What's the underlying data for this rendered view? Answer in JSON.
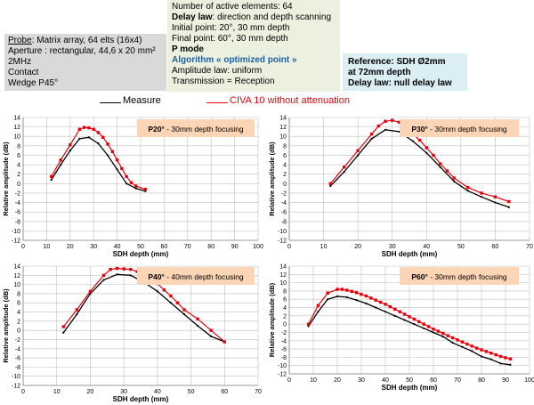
{
  "probe": {
    "lines": [
      "Probe",
      ": Matrix array, 64 elts (16x4)",
      "Aperture : rectangular, 44,6 x 20 mm²",
      "2MHz",
      "Contact",
      "Wedge P45°"
    ]
  },
  "params": {
    "line1": "Number of active elements: 64",
    "line2_label": "Delay law",
    "line2_rest": ": direction and depth scanning",
    "line3": "Initial point: 20°, 30 mm depth",
    "line4": "Final point: 60°, 30 mm depth",
    "line5": "P mode",
    "line6": "Algorithm « optimized point »",
    "line7": "Amplitude law: uniform",
    "line8": "Transmission = Reception"
  },
  "reference": {
    "line1": "Reference: SDH Ø2mm",
    "line2": "at 72mm  depth",
    "line3": "Delay law: null delay law"
  },
  "legend": {
    "measure": "Measure",
    "civa": "CIVA 10 without attenuation",
    "measure_color": "#000000",
    "civa_color": "#e8000b"
  },
  "chart_data": [
    {
      "type": "line",
      "title": "P20° - 30mm depth focusing",
      "xlabel": "SDH depth (mm)",
      "ylabel": "Relative amplitude (dB)",
      "xlim": [
        0,
        100
      ],
      "xticks": [
        0,
        10,
        20,
        30,
        40,
        50,
        60,
        70,
        80,
        90,
        100
      ],
      "ylim": [
        -12,
        14
      ],
      "yticks": [
        -12,
        -10,
        -8,
        -6,
        -4,
        -2,
        0,
        2,
        4,
        6,
        8,
        10,
        12,
        14
      ],
      "grid": true,
      "series": [
        {
          "name": "Measure",
          "x": [
            12,
            16,
            20,
            24,
            28,
            32,
            36,
            40,
            44,
            48,
            52
          ],
          "y": [
            0.8,
            4.0,
            7.0,
            9.5,
            9.8,
            8.5,
            6.0,
            3.0,
            0,
            -1,
            -1.6
          ]
        },
        {
          "name": "CIVA 10 without attenuation",
          "x": [
            12,
            16,
            20,
            24,
            26,
            28,
            30,
            32,
            34,
            36,
            38,
            40,
            42,
            44,
            46,
            48,
            52
          ],
          "y": [
            1.5,
            5.0,
            8.2,
            11.5,
            11.9,
            11.8,
            11.5,
            10.8,
            9.8,
            8.4,
            6.8,
            5.0,
            3.2,
            1.5,
            0.2,
            -0.5,
            -1.2
          ]
        }
      ]
    },
    {
      "type": "line",
      "title": "P30° - 30mm depth focusing",
      "xlabel": "SDH depth (mm)",
      "ylabel": "Relative amplitude (dB)",
      "xlim": [
        0,
        70
      ],
      "xticks": [
        0,
        10,
        20,
        30,
        40,
        50,
        60,
        70
      ],
      "ylim": [
        -12,
        14
      ],
      "yticks": [
        -12,
        -10,
        -8,
        -6,
        -4,
        -2,
        0,
        2,
        4,
        6,
        8,
        10,
        12,
        14
      ],
      "grid": true,
      "series": [
        {
          "name": "Measure",
          "x": [
            12,
            16,
            20,
            24,
            28,
            32,
            36,
            40,
            44,
            48,
            52,
            56,
            60,
            64
          ],
          "y": [
            -0.5,
            2.5,
            6.0,
            9.5,
            11.4,
            11.0,
            9.0,
            6.5,
            3.5,
            0.5,
            -1.5,
            -2.8,
            -4.0,
            -5.0
          ]
        },
        {
          "name": "CIVA 10 without attenuation",
          "x": [
            12,
            16,
            20,
            24,
            26,
            28,
            30,
            32,
            34,
            36,
            38,
            40,
            42,
            44,
            46,
            48,
            52,
            56,
            60,
            64
          ],
          "y": [
            0,
            3.5,
            7.0,
            10.5,
            12.2,
            13.2,
            13.4,
            13.0,
            12.0,
            10.5,
            9.2,
            7.6,
            6.0,
            4.2,
            2.7,
            1.2,
            -0.8,
            -2.0,
            -2.8,
            -3.8
          ]
        }
      ]
    },
    {
      "type": "line",
      "title": "P40° - 40mm depth focusing",
      "xlabel": "SDH depth (mm)",
      "ylabel": "Relative amplitude (dB)",
      "xlim": [
        0,
        70
      ],
      "xticks": [
        0,
        10,
        20,
        30,
        40,
        50,
        60,
        70
      ],
      "ylim": [
        -12,
        14
      ],
      "yticks": [
        -12,
        -10,
        -8,
        -6,
        -4,
        -2,
        0,
        2,
        4,
        6,
        8,
        10,
        12,
        14
      ],
      "grid": true,
      "series": [
        {
          "name": "Measure",
          "x": [
            12,
            16,
            20,
            24,
            28,
            32,
            36,
            40,
            44,
            48,
            52,
            56,
            60
          ],
          "y": [
            -0.5,
            3.5,
            8.0,
            11.0,
            12.2,
            12.0,
            10.5,
            8.5,
            6.0,
            3.5,
            1.0,
            -1.3,
            -2.5
          ]
        },
        {
          "name": "CIVA 10 without attenuation",
          "x": [
            12,
            16,
            20,
            24,
            26,
            28,
            30,
            32,
            34,
            36,
            38,
            40,
            42,
            44,
            46,
            48,
            52,
            56,
            60
          ],
          "y": [
            0.8,
            4.5,
            8.5,
            12.0,
            13.3,
            13.5,
            13.4,
            13.3,
            12.8,
            12.0,
            11.0,
            10.2,
            8.8,
            7.5,
            6.0,
            4.5,
            2.5,
            0,
            -2.5
          ]
        }
      ]
    },
    {
      "type": "line",
      "title": "P60° - 30mm depth focusing",
      "xlabel": "SDH depth (mm)",
      "ylabel": "Relative amplitude (dB)",
      "xlim": [
        0,
        100
      ],
      "xticks": [
        0,
        10,
        20,
        30,
        40,
        50,
        60,
        70,
        80,
        90,
        100
      ],
      "ylim": [
        -12,
        14
      ],
      "yticks": [
        -12,
        -10,
        -8,
        -6,
        -4,
        -2,
        0,
        2,
        4,
        6,
        8,
        10,
        12,
        14
      ],
      "grid": true,
      "series": [
        {
          "name": "Measure",
          "x": [
            8,
            12,
            16,
            20,
            24,
            28,
            32,
            36,
            40,
            44,
            48,
            52,
            56,
            60,
            64,
            68,
            72,
            76,
            80,
            84,
            88,
            92
          ],
          "y": [
            -0.5,
            3.0,
            6.0,
            6.7,
            6.5,
            5.8,
            5.0,
            4.0,
            3.0,
            2.0,
            1.0,
            0,
            -1.0,
            -2.0,
            -3.0,
            -4.5,
            -5.5,
            -6.5,
            -7.8,
            -8.5,
            -9.5,
            -9.8
          ]
        },
        {
          "name": "CIVA 10 without attenuation",
          "x": [
            8,
            12,
            16,
            20,
            22,
            24,
            26,
            28,
            30,
            32,
            34,
            36,
            38,
            40,
            42,
            44,
            46,
            48,
            50,
            52,
            54,
            56,
            58,
            60,
            62,
            64,
            66,
            68,
            70,
            72,
            74,
            76,
            78,
            80,
            82,
            84,
            86,
            88,
            90,
            92
          ],
          "y": [
            0,
            4.5,
            7.5,
            8.4,
            8.4,
            8.2,
            7.9,
            7.6,
            7.2,
            6.8,
            6.3,
            5.8,
            5.3,
            4.8,
            4.2,
            3.6,
            3.0,
            2.4,
            1.8,
            1.2,
            0.6,
            0,
            -0.6,
            -1.2,
            -1.7,
            -2.2,
            -2.8,
            -3.3,
            -3.8,
            -4.3,
            -4.8,
            -5.3,
            -5.8,
            -6.2,
            -6.6,
            -7.0,
            -7.4,
            -7.8,
            -8.1,
            -8.4
          ]
        }
      ]
    }
  ]
}
